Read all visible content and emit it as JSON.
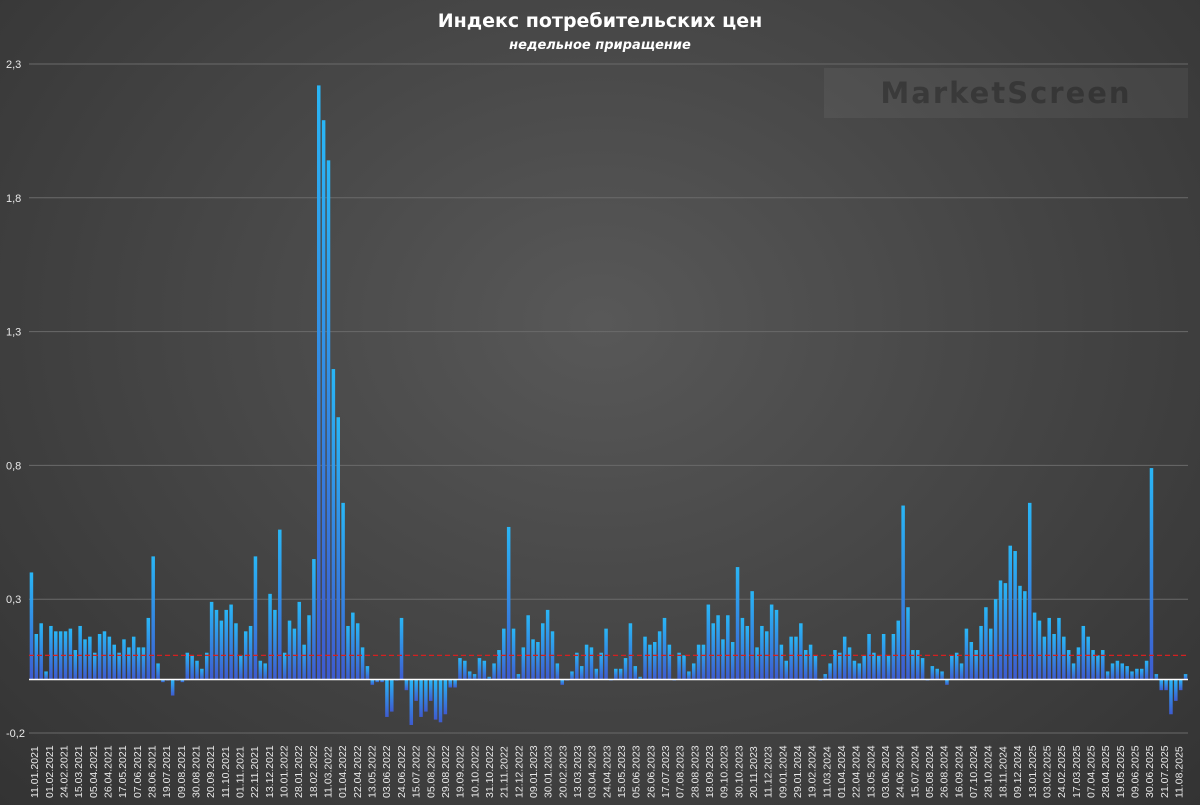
{
  "chart_data": {
    "type": "bar",
    "title": "Индекс потребительских цен",
    "subtitle": "недельное приращение",
    "watermark": "MarketScreen",
    "ylim": [
      -0.2,
      2.3
    ],
    "yticks": [
      -0.2,
      0.3,
      0.8,
      1.3,
      1.8,
      2.3
    ],
    "ytick_labels": [
      "-0,2",
      "0,3",
      "0,8",
      "1,3",
      "1,8",
      "2,3"
    ],
    "grid": true,
    "reference_line": {
      "value": 0.09,
      "style": "dashed",
      "color": "#d42020"
    },
    "colors": {
      "bar_top": "#29b6f6",
      "bar_bottom": "#3e5bcf",
      "grid": "#6a6a6a",
      "zero_line": "#ffffff"
    },
    "xtick_labels": [
      "11.01.2021",
      "01.02.2021",
      "24.02.2021",
      "15.03.2021",
      "05.04.2021",
      "26.04.2021",
      "17.05.2021",
      "07.06.2021",
      "28.06.2021",
      "19.07.2021",
      "09.08.2021",
      "30.08.2021",
      "20.09.2021",
      "11.10.2021",
      "01.11.2021",
      "22.11.2021",
      "13.12.2021",
      "10.01.2022",
      "28.01.2022",
      "18.02.2022",
      "11.03.2022",
      "01.04.2022",
      "22.04.2022",
      "13.05.2022",
      "03.06.2022",
      "24.06.2022",
      "15.07.2022",
      "05.08.2022",
      "29.08.2022",
      "19.09.2022",
      "10.10.2022",
      "31.10.2022",
      "21.11.2022",
      "12.12.2022",
      "09.01.2023",
      "30.01.2023",
      "20.02.2023",
      "13.03.2023",
      "03.04.2023",
      "24.04.2023",
      "15.05.2023",
      "05.06.2023",
      "26.06.2023",
      "17.07.2023",
      "07.08.2023",
      "28.08.2023",
      "18.09.2023",
      "09.10.2023",
      "30.10.2023",
      "20.11.2023",
      "11.12.2023",
      "09.01.2024",
      "29.01.2024",
      "19.02.2024",
      "11.03.2024",
      "01.04.2024",
      "22.04.2024",
      "13.05.2024",
      "03.06.2024",
      "24.06.2024",
      "15.07.2024",
      "05.08.2024",
      "26.08.2024",
      "16.09.2024",
      "07.10.2024",
      "28.10.2024",
      "18.11.2024",
      "09.12.2024",
      "13.01.2025",
      "03.02.2025",
      "24.02.2025",
      "17.03.2025",
      "07.04.2025",
      "28.04.2025",
      "19.05.2025",
      "09.06.2025",
      "30.06.2025",
      "21.07.2025",
      "11.08.2025"
    ],
    "values": [
      0.4,
      0.17,
      0.21,
      0.03,
      0.2,
      0.18,
      0.18,
      0.18,
      0.19,
      0.11,
      0.2,
      0.15,
      0.16,
      0.1,
      0.17,
      0.18,
      0.16,
      0.13,
      0.1,
      0.15,
      0.12,
      0.16,
      0.12,
      0.12,
      0.23,
      0.46,
      0.06,
      -0.01,
      0.0,
      -0.06,
      0.0,
      -0.01,
      0.1,
      0.09,
      0.07,
      0.04,
      0.1,
      0.29,
      0.26,
      0.22,
      0.26,
      0.28,
      0.21,
      0.09,
      0.18,
      0.2,
      0.46,
      0.07,
      0.06,
      0.32,
      0.26,
      0.56,
      0.1,
      0.22,
      0.19,
      0.29,
      0.13,
      0.24,
      0.45,
      2.22,
      2.09,
      1.94,
      1.16,
      0.98,
      0.66,
      0.2,
      0.25,
      0.21,
      0.12,
      0.05,
      -0.02,
      -0.01,
      -0.01,
      -0.14,
      -0.12,
      0.0,
      0.23,
      -0.04,
      -0.17,
      -0.08,
      -0.14,
      -0.12,
      -0.08,
      -0.15,
      -0.16,
      -0.13,
      -0.03,
      -0.03,
      0.08,
      0.07,
      0.03,
      0.02,
      0.08,
      0.07,
      0.01,
      0.06,
      0.11,
      0.19,
      0.57,
      0.19,
      0.02,
      0.12,
      0.24,
      0.15,
      0.14,
      0.21,
      0.26,
      0.18,
      0.06,
      -0.02,
      0.0,
      0.03,
      0.1,
      0.05,
      0.13,
      0.12,
      0.04,
      0.1,
      0.19,
      0.0,
      0.04,
      0.04,
      0.08,
      0.21,
      0.05,
      0.01,
      0.16,
      0.13,
      0.14,
      0.18,
      0.23,
      0.13,
      0.0,
      0.1,
      0.09,
      0.03,
      0.06,
      0.13,
      0.13,
      0.28,
      0.21,
      0.24,
      0.15,
      0.24,
      0.14,
      0.42,
      0.23,
      0.2,
      0.33,
      0.12,
      0.2,
      0.18,
      0.28,
      0.26,
      0.13,
      0.07,
      0.16,
      0.16,
      0.21,
      0.11,
      0.13,
      0.09,
      0.0,
      0.02,
      0.06,
      0.11,
      0.1,
      0.16,
      0.12,
      0.07,
      0.06,
      0.09,
      0.17,
      0.1,
      0.09,
      0.17,
      0.09,
      0.17,
      0.22,
      0.65,
      0.27,
      0.11,
      0.11,
      0.08,
      0.0,
      0.05,
      0.04,
      0.03,
      -0.02,
      0.09,
      0.1,
      0.06,
      0.19,
      0.14,
      0.11,
      0.2,
      0.27,
      0.19,
      0.3,
      0.37,
      0.36,
      0.5,
      0.48,
      0.35,
      0.33,
      0.66,
      0.25,
      0.22,
      0.16,
      0.23,
      0.17,
      0.23,
      0.16,
      0.11,
      0.06,
      0.12,
      0.2,
      0.16,
      0.11,
      0.09,
      0.11,
      0.03,
      0.06,
      0.07,
      0.06,
      0.05,
      0.03,
      0.04,
      0.04,
      0.07,
      0.79,
      0.02,
      -0.04,
      -0.04,
      -0.13,
      -0.08,
      -0.04,
      0.02
    ]
  }
}
